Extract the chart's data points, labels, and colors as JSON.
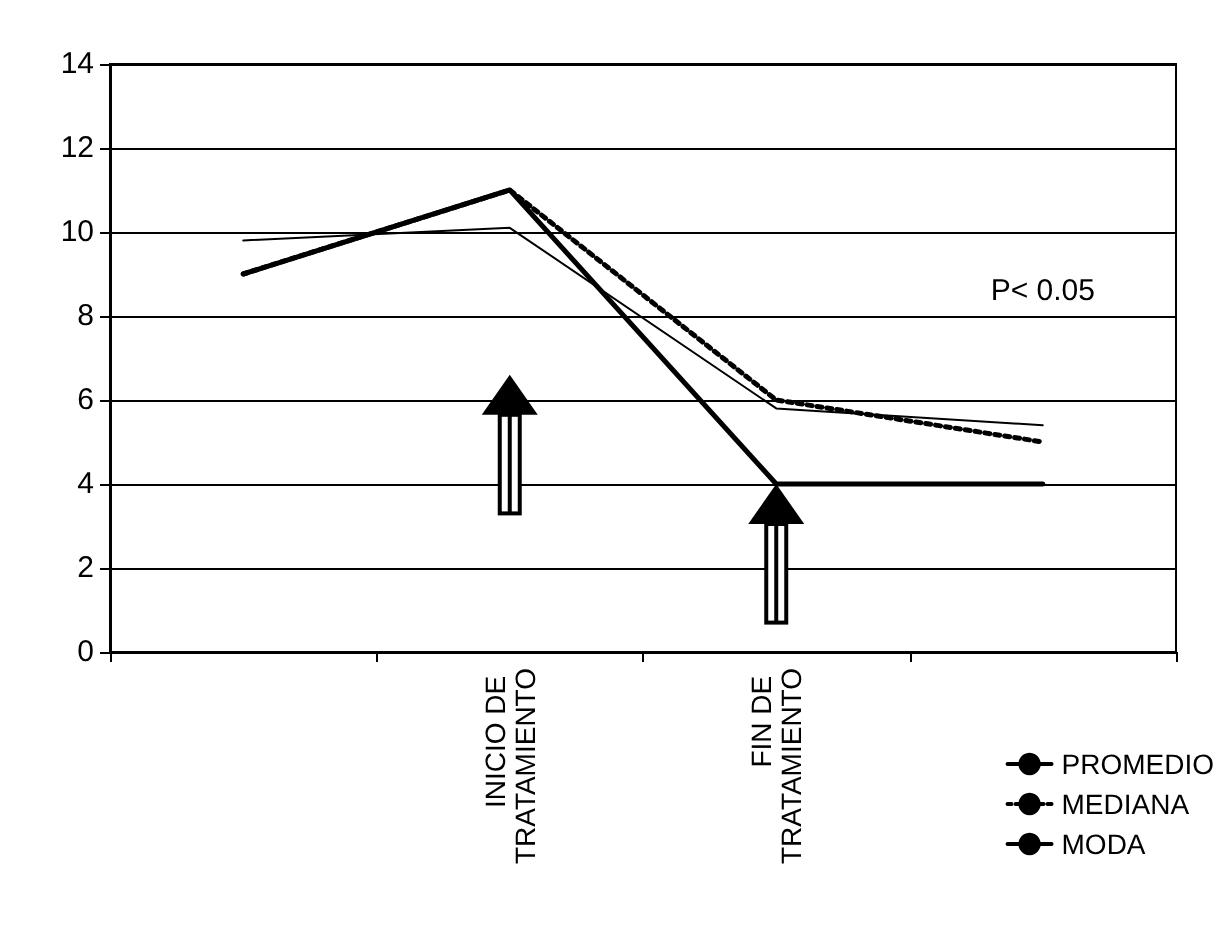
{
  "chart_data": {
    "type": "line",
    "categories": [
      null,
      "INICIO DE TRATAMIENTO",
      "FIN DE TRATAMIENTO",
      null
    ],
    "series": [
      {
        "name": "PROMEDIO",
        "color": "#000000",
        "line_style": "solid",
        "values": [
          9.8,
          10.1,
          5.8,
          5.4
        ]
      },
      {
        "name": "MEDIANA",
        "color": "#000000",
        "line_style": "dotted",
        "values": [
          9.0,
          11.0,
          6.0,
          5.0
        ]
      },
      {
        "name": "MODA",
        "color": "#000000",
        "line_style": "solid",
        "values": [
          9.0,
          11.0,
          4.0,
          4.0
        ]
      }
    ],
    "ylim": [
      0,
      14
    ],
    "yticks": [
      0,
      2,
      4,
      6,
      8,
      10,
      12,
      14
    ],
    "grid": "y",
    "legend": "bottom right",
    "marker": "none",
    "annotations": [
      "P< 0.05"
    ]
  }
}
